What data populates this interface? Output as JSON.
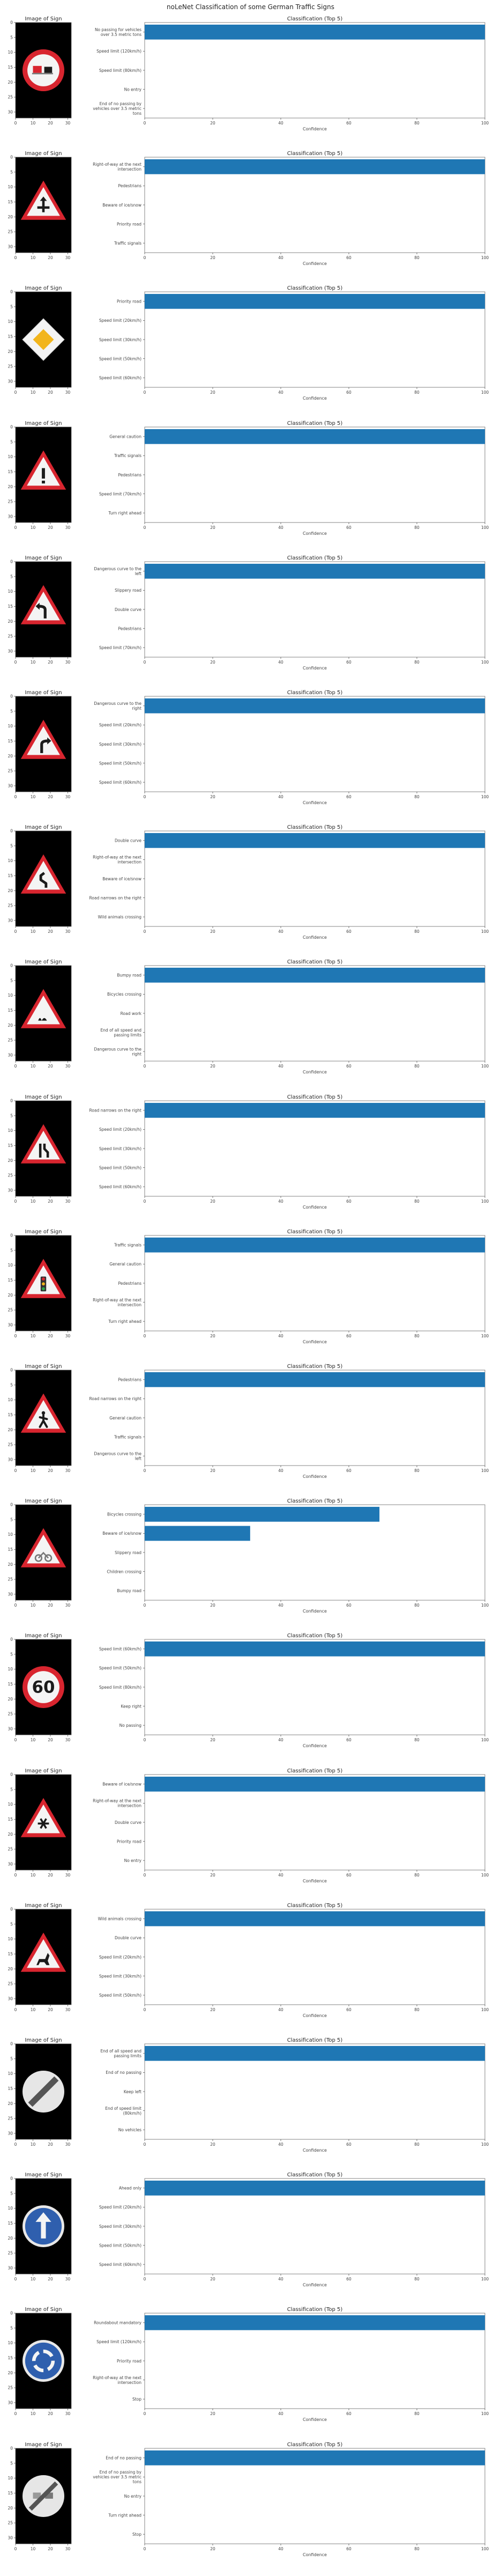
{
  "figure": {
    "title": "noLeNet Classification of some German Traffic Signs"
  },
  "chart_data": [
    {
      "index": 0,
      "image_panel": {
        "title": "Image of Sign",
        "sign_icon": "no-passing-trucks-sign",
        "x_ticks": [
          0,
          10,
          20,
          30
        ],
        "y_ticks": [
          0,
          5,
          10,
          15,
          20,
          25,
          30
        ]
      },
      "type": "bar",
      "orientation": "horizontal",
      "title": "Classification (Top 5)",
      "xlabel": "Confidence",
      "xlim": [
        0,
        100
      ],
      "x_ticks": [
        0,
        20,
        40,
        60,
        80,
        100
      ],
      "categories": [
        "No passing for vehicles over 3.5 metric tons",
        "Speed limit (120km/h)",
        "Speed limit (80km/h)",
        "No entry",
        "End of no passing by vehicles over 3.5 metric tons"
      ],
      "values": [
        100,
        0,
        0,
        0,
        0
      ],
      "bar_color": "#1f77b4"
    },
    {
      "index": 1,
      "image_panel": {
        "title": "Image of Sign",
        "sign_icon": "right-of-way-sign",
        "x_ticks": [
          0,
          10,
          20,
          30
        ],
        "y_ticks": [
          0,
          5,
          10,
          15,
          20,
          25,
          30
        ]
      },
      "type": "bar",
      "orientation": "horizontal",
      "title": "Classification (Top 5)",
      "xlabel": "Confidence",
      "xlim": [
        0,
        100
      ],
      "x_ticks": [
        0,
        20,
        40,
        60,
        80,
        100
      ],
      "categories": [
        "Right-of-way at the next intersection",
        "Pedestrians",
        "Beware of ice/snow",
        "Priority road",
        "Traffic signals"
      ],
      "values": [
        100,
        0,
        0,
        0,
        0
      ],
      "bar_color": "#1f77b4"
    },
    {
      "index": 2,
      "image_panel": {
        "title": "Image of Sign",
        "sign_icon": "priority-road-sign",
        "x_ticks": [
          0,
          10,
          20,
          30
        ],
        "y_ticks": [
          0,
          5,
          10,
          15,
          20,
          25,
          30
        ]
      },
      "type": "bar",
      "orientation": "horizontal",
      "title": "Classification (Top 5)",
      "xlabel": "Confidence",
      "xlim": [
        0,
        100
      ],
      "x_ticks": [
        0,
        20,
        40,
        60,
        80,
        100
      ],
      "categories": [
        "Priority road",
        "Speed limit (20km/h)",
        "Speed limit (30km/h)",
        "Speed limit (50km/h)",
        "Speed limit (60km/h)"
      ],
      "values": [
        100,
        0,
        0,
        0,
        0
      ],
      "bar_color": "#1f77b4"
    },
    {
      "index": 3,
      "image_panel": {
        "title": "Image of Sign",
        "sign_icon": "general-caution-sign",
        "x_ticks": [
          0,
          10,
          20,
          30
        ],
        "y_ticks": [
          0,
          5,
          10,
          15,
          20,
          25,
          30
        ]
      },
      "type": "bar",
      "orientation": "horizontal",
      "title": "Classification (Top 5)",
      "xlabel": "Confidence",
      "xlim": [
        0,
        100
      ],
      "x_ticks": [
        0,
        20,
        40,
        60,
        80,
        100
      ],
      "categories": [
        "General caution",
        "Traffic signals",
        "Pedestrians",
        "Speed limit (70km/h)",
        "Turn right ahead"
      ],
      "values": [
        100,
        0,
        0,
        0,
        0
      ],
      "bar_color": "#1f77b4"
    },
    {
      "index": 4,
      "image_panel": {
        "title": "Image of Sign",
        "sign_icon": "dangerous-curve-left-sign",
        "x_ticks": [
          0,
          10,
          20,
          30
        ],
        "y_ticks": [
          0,
          5,
          10,
          15,
          20,
          25,
          30
        ]
      },
      "type": "bar",
      "orientation": "horizontal",
      "title": "Classification (Top 5)",
      "xlabel": "Confidence",
      "xlim": [
        0,
        100
      ],
      "x_ticks": [
        0,
        20,
        40,
        60,
        80,
        100
      ],
      "categories": [
        "Dangerous curve to the left",
        "Slippery road",
        "Double curve",
        "Pedestrians",
        "Speed limit (70km/h)"
      ],
      "values": [
        100,
        0,
        0,
        0,
        0
      ],
      "bar_color": "#1f77b4"
    },
    {
      "index": 5,
      "image_panel": {
        "title": "Image of Sign",
        "sign_icon": "dangerous-curve-right-sign",
        "x_ticks": [
          0,
          10,
          20,
          30
        ],
        "y_ticks": [
          0,
          5,
          10,
          15,
          20,
          25,
          30
        ]
      },
      "type": "bar",
      "orientation": "horizontal",
      "title": "Classification (Top 5)",
      "xlabel": "Confidence",
      "xlim": [
        0,
        100
      ],
      "x_ticks": [
        0,
        20,
        40,
        60,
        80,
        100
      ],
      "categories": [
        "Dangerous curve to the right",
        "Speed limit (20km/h)",
        "Speed limit (30km/h)",
        "Speed limit (50km/h)",
        "Speed limit (60km/h)"
      ],
      "values": [
        100,
        0,
        0,
        0,
        0
      ],
      "bar_color": "#1f77b4"
    },
    {
      "index": 6,
      "image_panel": {
        "title": "Image of Sign",
        "sign_icon": "double-curve-sign",
        "x_ticks": [
          0,
          10,
          20,
          30
        ],
        "y_ticks": [
          0,
          5,
          10,
          15,
          20,
          25,
          30
        ]
      },
      "type": "bar",
      "orientation": "horizontal",
      "title": "Classification (Top 5)",
      "xlabel": "Confidence",
      "xlim": [
        0,
        100
      ],
      "x_ticks": [
        0,
        20,
        40,
        60,
        80,
        100
      ],
      "categories": [
        "Double curve",
        "Right-of-way at the next intersection",
        "Beware of ice/snow",
        "Road narrows on the right",
        "Wild animals crossing"
      ],
      "values": [
        100,
        0,
        0,
        0,
        0
      ],
      "bar_color": "#1f77b4"
    },
    {
      "index": 7,
      "image_panel": {
        "title": "Image of Sign",
        "sign_icon": "bumpy-road-sign",
        "x_ticks": [
          0,
          10,
          20,
          30
        ],
        "y_ticks": [
          0,
          5,
          10,
          15,
          20,
          25,
          30
        ]
      },
      "type": "bar",
      "orientation": "horizontal",
      "title": "Classification (Top 5)",
      "xlabel": "Confidence",
      "xlim": [
        0,
        100
      ],
      "x_ticks": [
        0,
        20,
        40,
        60,
        80,
        100
      ],
      "categories": [
        "Bumpy road",
        "Bicycles crossing",
        "Road work",
        "End of all speed and passing limits",
        "Dangerous curve to the right"
      ],
      "values": [
        100,
        0,
        0,
        0,
        0
      ],
      "bar_color": "#1f77b4"
    },
    {
      "index": 8,
      "image_panel": {
        "title": "Image of Sign",
        "sign_icon": "road-narrows-right-sign",
        "x_ticks": [
          0,
          10,
          20,
          30
        ],
        "y_ticks": [
          0,
          5,
          10,
          15,
          20,
          25,
          30
        ]
      },
      "type": "bar",
      "orientation": "horizontal",
      "title": "Classification (Top 5)",
      "xlabel": "Confidence",
      "xlim": [
        0,
        100
      ],
      "x_ticks": [
        0,
        20,
        40,
        60,
        80,
        100
      ],
      "categories": [
        "Road narrows on the right",
        "Speed limit (20km/h)",
        "Speed limit (30km/h)",
        "Speed limit (50km/h)",
        "Speed limit (60km/h)"
      ],
      "values": [
        100,
        0,
        0,
        0,
        0
      ],
      "bar_color": "#1f77b4"
    },
    {
      "index": 9,
      "image_panel": {
        "title": "Image of Sign",
        "sign_icon": "traffic-signals-sign",
        "x_ticks": [
          0,
          10,
          20,
          30
        ],
        "y_ticks": [
          0,
          5,
          10,
          15,
          20,
          25,
          30
        ]
      },
      "type": "bar",
      "orientation": "horizontal",
      "title": "Classification (Top 5)",
      "xlabel": "Confidence",
      "xlim": [
        0,
        100
      ],
      "x_ticks": [
        0,
        20,
        40,
        60,
        80,
        100
      ],
      "categories": [
        "Traffic signals",
        "General caution",
        "Pedestrians",
        "Right-of-way at the next intersection",
        "Turn right ahead"
      ],
      "values": [
        100,
        0,
        0,
        0,
        0
      ],
      "bar_color": "#1f77b4"
    },
    {
      "index": 10,
      "image_panel": {
        "title": "Image of Sign",
        "sign_icon": "pedestrians-sign",
        "x_ticks": [
          0,
          10,
          20,
          30
        ],
        "y_ticks": [
          0,
          5,
          10,
          15,
          20,
          25,
          30
        ]
      },
      "type": "bar",
      "orientation": "horizontal",
      "title": "Classification (Top 5)",
      "xlabel": "Confidence",
      "xlim": [
        0,
        100
      ],
      "x_ticks": [
        0,
        20,
        40,
        60,
        80,
        100
      ],
      "categories": [
        "Pedestrians",
        "Road narrows on the right",
        "General caution",
        "Traffic signals",
        "Dangerous curve to the left"
      ],
      "values": [
        100,
        0,
        0,
        0,
        0
      ],
      "bar_color": "#1f77b4"
    },
    {
      "index": 11,
      "image_panel": {
        "title": "Image of Sign",
        "sign_icon": "bicycles-crossing-sign",
        "x_ticks": [
          0,
          10,
          20,
          30
        ],
        "y_ticks": [
          0,
          5,
          10,
          15,
          20,
          25,
          30
        ]
      },
      "type": "bar",
      "orientation": "horizontal",
      "title": "Classification (Top 5)",
      "xlabel": "Confidence",
      "xlim": [
        0,
        100
      ],
      "x_ticks": [
        0,
        20,
        40,
        60,
        80,
        100
      ],
      "categories": [
        "Bicycles crossing",
        "Beware of ice/snow",
        "Slippery road",
        "Children crossing",
        "Bumpy road"
      ],
      "values": [
        69,
        31,
        0,
        0,
        0
      ],
      "bar_color": "#1f77b4"
    },
    {
      "index": 12,
      "image_panel": {
        "title": "Image of Sign",
        "sign_icon": "speed-limit-60-sign",
        "sign_text": "60",
        "x_ticks": [
          0,
          10,
          20,
          30
        ],
        "y_ticks": [
          0,
          5,
          10,
          15,
          20,
          25,
          30
        ]
      },
      "type": "bar",
      "orientation": "horizontal",
      "title": "Classification (Top 5)",
      "xlabel": "Confidence",
      "xlim": [
        0,
        100
      ],
      "x_ticks": [
        0,
        20,
        40,
        60,
        80,
        100
      ],
      "categories": [
        "Speed limit (60km/h)",
        "Speed limit (50km/h)",
        "Speed limit (80km/h)",
        "Keep right",
        "No passing"
      ],
      "values": [
        100,
        0,
        0,
        0,
        0
      ],
      "bar_color": "#1f77b4"
    },
    {
      "index": 13,
      "image_panel": {
        "title": "Image of Sign",
        "sign_icon": "beware-of-ice-snow-sign",
        "x_ticks": [
          0,
          10,
          20,
          30
        ],
        "y_ticks": [
          0,
          5,
          10,
          15,
          20,
          25,
          30
        ]
      },
      "type": "bar",
      "orientation": "horizontal",
      "title": "Classification (Top 5)",
      "xlabel": "Confidence",
      "xlim": [
        0,
        100
      ],
      "x_ticks": [
        0,
        20,
        40,
        60,
        80,
        100
      ],
      "categories": [
        "Beware of ice/snow",
        "Right-of-way at the next intersection",
        "Double curve",
        "Priority road",
        "No entry"
      ],
      "values": [
        100,
        0,
        0,
        0,
        0
      ],
      "bar_color": "#1f77b4"
    },
    {
      "index": 14,
      "image_panel": {
        "title": "Image of Sign",
        "sign_icon": "wild-animals-crossing-sign",
        "x_ticks": [
          0,
          10,
          20,
          30
        ],
        "y_ticks": [
          0,
          5,
          10,
          15,
          20,
          25,
          30
        ]
      },
      "type": "bar",
      "orientation": "horizontal",
      "title": "Classification (Top 5)",
      "xlabel": "Confidence",
      "xlim": [
        0,
        100
      ],
      "x_ticks": [
        0,
        20,
        40,
        60,
        80,
        100
      ],
      "categories": [
        "Wild animals crossing",
        "Double curve",
        "Speed limit (20km/h)",
        "Speed limit (30km/h)",
        "Speed limit (50km/h)"
      ],
      "values": [
        100,
        0,
        0,
        0,
        0
      ],
      "bar_color": "#1f77b4"
    },
    {
      "index": 15,
      "image_panel": {
        "title": "Image of Sign",
        "sign_icon": "end-of-all-limits-sign",
        "x_ticks": [
          0,
          10,
          20,
          30
        ],
        "y_ticks": [
          0,
          5,
          10,
          15,
          20,
          25,
          30
        ]
      },
      "type": "bar",
      "orientation": "horizontal",
      "title": "Classification (Top 5)",
      "xlabel": "Confidence",
      "xlim": [
        0,
        100
      ],
      "x_ticks": [
        0,
        20,
        40,
        60,
        80,
        100
      ],
      "categories": [
        "End of all speed and passing limits",
        "End of no passing",
        "Keep left",
        "End of speed limit (80km/h)",
        "No vehicles"
      ],
      "values": [
        100,
        0,
        0,
        0,
        0
      ],
      "bar_color": "#1f77b4"
    },
    {
      "index": 16,
      "image_panel": {
        "title": "Image of Sign",
        "sign_icon": "ahead-only-sign",
        "x_ticks": [
          0,
          10,
          20,
          30
        ],
        "y_ticks": [
          0,
          5,
          10,
          15,
          20,
          25,
          30
        ]
      },
      "type": "bar",
      "orientation": "horizontal",
      "title": "Classification (Top 5)",
      "xlabel": "Confidence",
      "xlim": [
        0,
        100
      ],
      "x_ticks": [
        0,
        20,
        40,
        60,
        80,
        100
      ],
      "categories": [
        "Ahead only",
        "Speed limit (20km/h)",
        "Speed limit (30km/h)",
        "Speed limit (50km/h)",
        "Speed limit (60km/h)"
      ],
      "values": [
        100,
        0,
        0,
        0,
        0
      ],
      "bar_color": "#1f77b4"
    },
    {
      "index": 17,
      "image_panel": {
        "title": "Image of Sign",
        "sign_icon": "roundabout-sign",
        "x_ticks": [
          0,
          10,
          20,
          30
        ],
        "y_ticks": [
          0,
          5,
          10,
          15,
          20,
          25,
          30
        ]
      },
      "type": "bar",
      "orientation": "horizontal",
      "title": "Classification (Top 5)",
      "xlabel": "Confidence",
      "xlim": [
        0,
        100
      ],
      "x_ticks": [
        0,
        20,
        40,
        60,
        80,
        100
      ],
      "categories": [
        "Roundabout mandatory",
        "Speed limit (120km/h)",
        "Priority road",
        "Right-of-way at the next intersection",
        "Stop"
      ],
      "values": [
        100,
        0,
        0,
        0,
        0
      ],
      "bar_color": "#1f77b4"
    },
    {
      "index": 18,
      "image_panel": {
        "title": "Image of Sign",
        "sign_icon": "end-of-no-passing-sign",
        "x_ticks": [
          0,
          10,
          20,
          30
        ],
        "y_ticks": [
          0,
          5,
          10,
          15,
          20,
          25,
          30
        ]
      },
      "type": "bar",
      "orientation": "horizontal",
      "title": "Classification (Top 5)",
      "xlabel": "Confidence",
      "xlim": [
        0,
        100
      ],
      "x_ticks": [
        0,
        20,
        40,
        60,
        80,
        100
      ],
      "categories": [
        "End of no passing",
        "End of no passing by vehicles over 3.5 metric tons",
        "No entry",
        "Turn right ahead",
        "Stop"
      ],
      "values": [
        100,
        0,
        0,
        0,
        0
      ],
      "bar_color": "#1f77b4"
    }
  ]
}
